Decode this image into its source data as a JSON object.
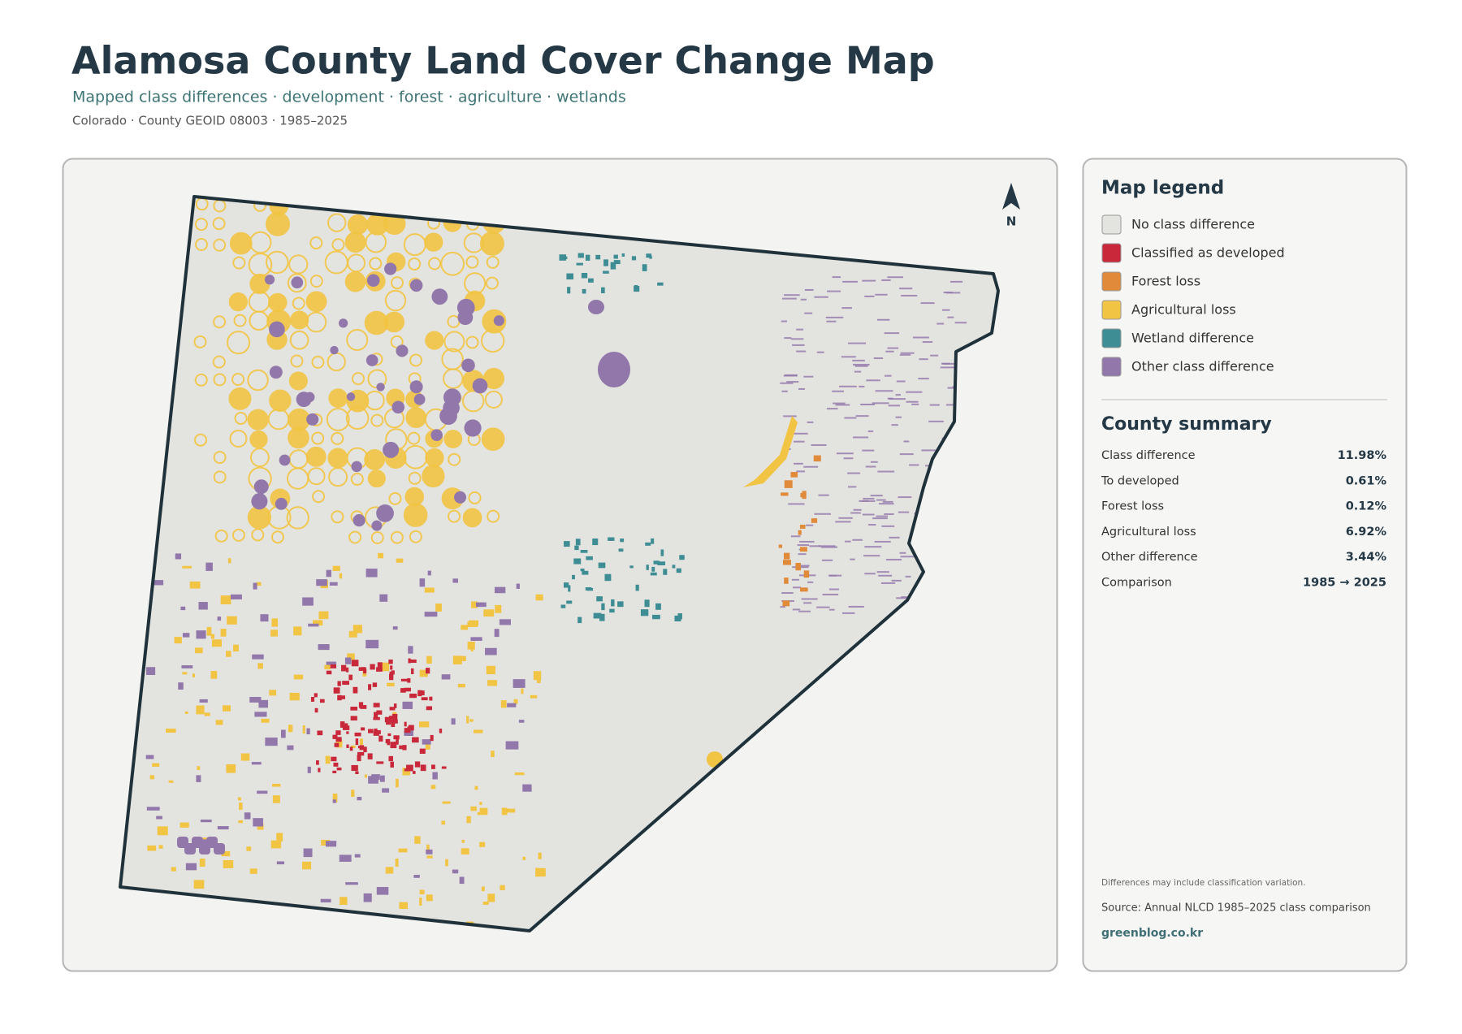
{
  "header": {
    "title": "Alamosa County Land Cover Change Map",
    "subtitle": "Mapped class differences · development · forest · agriculture · wetlands",
    "meta": "Colorado · County GEOID 08003 · 1985–2025"
  },
  "map": {
    "north_label": "N"
  },
  "legend": {
    "title": "Map legend",
    "items": [
      {
        "label": "No class difference",
        "color": "#e3e3df"
      },
      {
        "label": "Classified as developed",
        "color": "#c8283a"
      },
      {
        "label": "Forest loss",
        "color": "#e08a3a"
      },
      {
        "label": "Agricultural loss",
        "color": "#f2c443"
      },
      {
        "label": "Wetland difference",
        "color": "#3e8d94"
      },
      {
        "label": "Other class difference",
        "color": "#9277ab"
      }
    ]
  },
  "summary": {
    "title": "County summary",
    "rows": [
      {
        "label": "Class difference",
        "value": "11.98%"
      },
      {
        "label": "To developed",
        "value": "0.61%"
      },
      {
        "label": "Forest loss",
        "value": "0.12%"
      },
      {
        "label": "Agricultural loss",
        "value": "6.92%"
      },
      {
        "label": "Other difference",
        "value": "3.44%"
      },
      {
        "label": "Comparison",
        "value": "1985 → 2025"
      }
    ]
  },
  "footer": {
    "note": "Differences may include classification variation.",
    "source": "Source: Annual NLCD 1985–2025 class comparison",
    "credit": "greenblog.co.kr"
  }
}
